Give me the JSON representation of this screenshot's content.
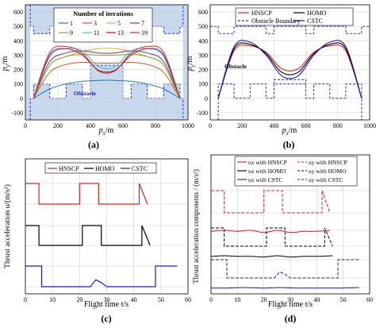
{
  "panels": {
    "a": {
      "tag": "(a)",
      "legend_title": "Number of iterations",
      "legend_items": [
        "1",
        "3",
        "5",
        "7",
        "9",
        "11",
        "13",
        "19"
      ],
      "obstacle_label": "Obstacle",
      "ylabel_main": "p",
      "ylabel_sub": "y",
      "ylabel_unit": "/m",
      "xlabel_main": "p",
      "xlabel_sub": "x",
      "xlabel_unit": "/m",
      "xticks": [
        "0",
        "200",
        "400",
        "600",
        "800",
        "1000"
      ],
      "yticks": [
        "-100",
        "0",
        "100",
        "200",
        "300",
        "400",
        "500",
        "600"
      ]
    },
    "b": {
      "tag": "(b)",
      "legend_items": [
        "HNSCP",
        "HOMO",
        "Obstacle Boundary",
        "CSTC"
      ],
      "obstacle_label": "Obstacle",
      "ylabel_main": "p",
      "ylabel_sub": "y",
      "ylabel_unit": "/m",
      "xlabel_main": "p",
      "xlabel_sub": "x",
      "xlabel_unit": "/m",
      "xticks": [
        "0",
        "200",
        "400",
        "600",
        "800",
        "1000"
      ],
      "yticks": [
        "-100",
        "0",
        "100",
        "200",
        "300",
        "400",
        "500",
        "600"
      ]
    },
    "c": {
      "tag": "(c)",
      "legend_items": [
        "HNSCP",
        "HOMO",
        "CSTC"
      ],
      "ylabel": "Thrust acceleration u/(m/s²)",
      "xlabel": "Flight time t/s",
      "xticks": [
        "0",
        "10",
        "20",
        "30",
        "40",
        "50",
        "60"
      ]
    },
    "d": {
      "tag": "(d)",
      "legend_items": [
        "ux with HNSCP",
        "uy with HNSCP",
        "ux with HOMO",
        "uy with HOMO",
        "ux with CSTC",
        "uy with CSTC"
      ],
      "ylabel": "Thrust acceleration components / (m/s²)",
      "xlabel": "Flight time t/s",
      "xticks": [
        "0",
        "10",
        "20",
        "30",
        "40",
        "50",
        "60"
      ]
    }
  },
  "colors": {
    "obstacle_fill": "#c8d9ee",
    "boundary": "#2b2bc8",
    "hnscp": "#e0201e",
    "homo": "#000000",
    "cstc": "#1c1cbd",
    "iter": [
      "#1f77b4",
      "#d95319",
      "#e8b21e",
      "#7e2f8e",
      "#77ac30",
      "#4dbeee",
      "#a2142f",
      "#c03030"
    ]
  },
  "chart_data": [
    {
      "type": "line",
      "panel": "a",
      "xlabel": "p_x/m",
      "ylabel": "p_y/m",
      "xlim": [
        0,
        1000
      ],
      "ylim": [
        -150,
        650
      ],
      "grid": true,
      "legend": "top-center",
      "legend_title": "Number of iterations",
      "series": [
        {
          "name": "1",
          "x": [
            50,
            150,
            250,
            350,
            450,
            550,
            650,
            750,
            850,
            950
          ],
          "y": [
            0,
            65,
            100,
            118,
            125,
            125,
            118,
            100,
            65,
            0
          ]
        },
        {
          "name": "3",
          "x": [
            50,
            150,
            250,
            350,
            450,
            550,
            650,
            750,
            850,
            950
          ],
          "y": [
            0,
            180,
            235,
            250,
            245,
            245,
            250,
            235,
            180,
            0
          ]
        },
        {
          "name": "5",
          "x": [
            50,
            150,
            250,
            350,
            450,
            550,
            650,
            750,
            850,
            950
          ],
          "y": [
            0,
            230,
            290,
            325,
            345,
            345,
            325,
            290,
            230,
            0
          ]
        },
        {
          "name": "7",
          "x": [
            50,
            150,
            250,
            350,
            450,
            550,
            650,
            750,
            850,
            950
          ],
          "y": [
            0,
            255,
            315,
            330,
            315,
            315,
            330,
            315,
            255,
            0
          ]
        },
        {
          "name": "9",
          "x": [
            50,
            150,
            250,
            350,
            450,
            550,
            650,
            750,
            850,
            950
          ],
          "y": [
            0,
            230,
            290,
            305,
            300,
            300,
            305,
            290,
            230,
            0
          ]
        },
        {
          "name": "11",
          "x": [
            50,
            150,
            250,
            350,
            450,
            550,
            650,
            750,
            850,
            950
          ],
          "y": [
            0,
            290,
            345,
            330,
            220,
            220,
            330,
            345,
            290,
            0
          ]
        },
        {
          "name": "13",
          "x": [
            50,
            150,
            250,
            350,
            450,
            550,
            650,
            750,
            850,
            950
          ],
          "y": [
            0,
            300,
            345,
            300,
            195,
            195,
            300,
            345,
            300,
            0
          ]
        },
        {
          "name": "19",
          "x": [
            50,
            150,
            250,
            350,
            450,
            550,
            650,
            750,
            850,
            950
          ],
          "y": [
            0,
            320,
            360,
            315,
            190,
            190,
            315,
            360,
            320,
            0
          ]
        }
      ]
    },
    {
      "type": "line",
      "panel": "b",
      "xlabel": "p_x/m",
      "ylabel": "p_y/m",
      "xlim": [
        0,
        1000
      ],
      "ylim": [
        -150,
        650
      ],
      "grid": true,
      "legend": "top-center",
      "series": [
        {
          "name": "HNSCP",
          "x": [
            50,
            150,
            250,
            350,
            450,
            550,
            650,
            750,
            850,
            950
          ],
          "y": [
            0,
            330,
            365,
            320,
            205,
            205,
            320,
            365,
            330,
            0
          ]
        },
        {
          "name": "HOMO",
          "x": [
            50,
            150,
            250,
            350,
            450,
            550,
            650,
            750,
            850,
            950
          ],
          "y": [
            0,
            345,
            375,
            310,
            180,
            180,
            310,
            375,
            345,
            0
          ]
        },
        {
          "name": "CSTC",
          "x": [
            50,
            150,
            250,
            350,
            450,
            550,
            650,
            750,
            850,
            950
          ],
          "y": [
            0,
            360,
            390,
            300,
            155,
            155,
            300,
            390,
            360,
            0
          ]
        }
      ]
    },
    {
      "type": "line",
      "panel": "c",
      "xlabel": "Flight time t/s",
      "ylabel": "Thrust acceleration u/(m/s²)",
      "xlim": [
        0,
        60
      ],
      "grid": true,
      "legend": "top",
      "series": [
        {
          "name": "HNSCP",
          "x": [
            0,
            5,
            5,
            20,
            20,
            27,
            27,
            42,
            42,
            45
          ],
          "y": [
            20,
            20,
            5,
            5,
            20,
            20,
            5,
            5,
            20,
            5
          ]
        },
        {
          "name": "HOMO",
          "x": [
            0,
            5,
            5,
            21,
            21,
            28,
            28,
            43,
            43,
            46
          ],
          "y": [
            20,
            20,
            5,
            5,
            20,
            20,
            5,
            5,
            20,
            5
          ]
        },
        {
          "name": "CSTC",
          "x": [
            0,
            6,
            6,
            24,
            26,
            28,
            30,
            48,
            48,
            56
          ],
          "y": [
            20,
            20,
            5,
            5,
            10,
            8,
            5,
            5,
            20,
            20
          ]
        }
      ]
    },
    {
      "type": "line",
      "panel": "d",
      "xlabel": "Flight time t/s",
      "ylabel": "Thrust acceleration components / (m/s²)",
      "xlim": [
        0,
        60
      ],
      "grid": true,
      "legend": "top",
      "series": [
        {
          "name": "ux with HNSCP",
          "x": [
            0,
            5,
            10,
            15,
            20,
            25,
            30,
            35,
            40,
            45
          ],
          "y": [
            4,
            5,
            4,
            5,
            3,
            5,
            3,
            4,
            4,
            5
          ]
        },
        {
          "name": "uy with HNSCP",
          "x": [
            0,
            5,
            5,
            20,
            20,
            27,
            27,
            42,
            42,
            45
          ],
          "y": [
            20,
            20,
            5,
            5,
            20,
            20,
            5,
            5,
            20,
            5
          ]
        },
        {
          "name": "ux with HOMO",
          "x": [
            0,
            5,
            10,
            15,
            20,
            25,
            30,
            35,
            40,
            46
          ],
          "y": [
            4,
            5,
            4,
            4,
            3,
            5,
            3,
            4,
            4,
            5
          ]
        },
        {
          "name": "uy with HOMO",
          "x": [
            0,
            5,
            5,
            21,
            21,
            28,
            28,
            43,
            43,
            46
          ],
          "y": [
            20,
            20,
            5,
            5,
            20,
            20,
            5,
            5,
            20,
            5
          ]
        },
        {
          "name": "ux with CSTC",
          "x": [
            0,
            6,
            12,
            20,
            26,
            32,
            40,
            48,
            56
          ],
          "y": [
            4,
            4,
            5,
            4,
            5,
            4,
            4,
            4,
            5
          ]
        },
        {
          "name": "uy with CSTC",
          "x": [
            0,
            6,
            6,
            24,
            26,
            28,
            30,
            48,
            48,
            56
          ],
          "y": [
            20,
            20,
            5,
            5,
            10,
            8,
            5,
            5,
            20,
            20
          ]
        }
      ]
    }
  ]
}
